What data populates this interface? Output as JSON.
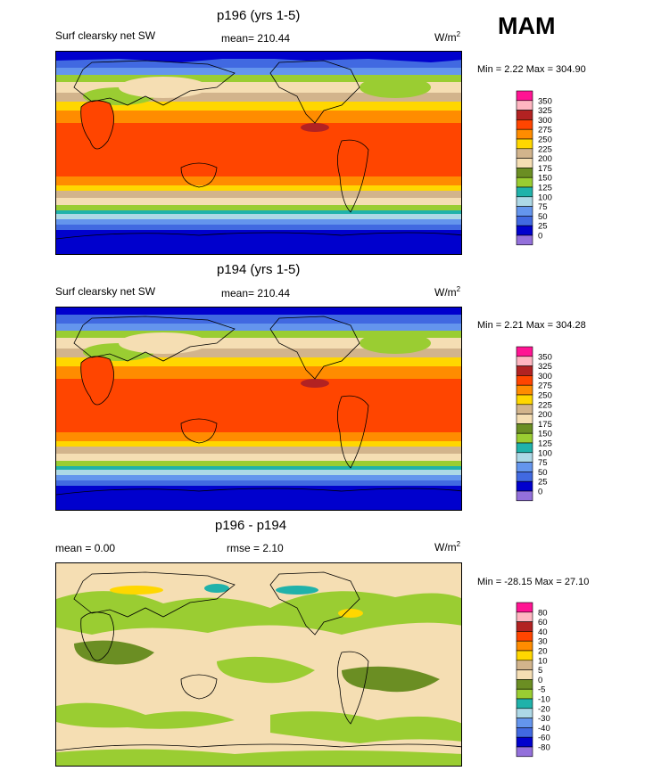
{
  "season": "MAM",
  "panels": [
    {
      "title": "p196 (yrs 1-5)",
      "left_label": "Surf clearsky net SW",
      "center_label": "mean= 210.44",
      "units": "W/m",
      "units_sup": "2",
      "minmax": "Min =   2.22 Max = 304.90",
      "legend_labels": [
        "350",
        "325",
        "300",
        "275",
        "250",
        "225",
        "200",
        "175",
        "150",
        "125",
        "100",
        "75",
        "50",
        "25",
        "0"
      ]
    },
    {
      "title": "p194 (yrs 1-5)",
      "left_label": "Surf clearsky net SW",
      "center_label": "mean= 210.44",
      "units": "W/m",
      "units_sup": "2",
      "minmax": "Min =   2.21 Max = 304.28",
      "legend_labels": [
        "350",
        "325",
        "300",
        "275",
        "250",
        "225",
        "200",
        "175",
        "150",
        "125",
        "100",
        "75",
        "50",
        "25",
        "0"
      ]
    },
    {
      "title": "p196 - p194",
      "left_label": "mean =   0.00",
      "center_label": "rmse =   2.10",
      "units": "W/m",
      "units_sup": "2",
      "minmax": "Min = -28.15 Max =  27.10",
      "legend_labels": [
        "80",
        "60",
        "40",
        "30",
        "20",
        "10",
        "5",
        "0",
        "-5",
        "-10",
        "-20",
        "-30",
        "-40",
        "-60",
        "-80"
      ]
    }
  ],
  "colors": {
    "colorbar": [
      "#ff1493",
      "#ffb6c1",
      "#b22222",
      "#ff4500",
      "#ff8c00",
      "#ffd700",
      "#d2b48c",
      "#f5deb3",
      "#6b8e23",
      "#9acd32",
      "#20b2aa",
      "#add8e6",
      "#6495ed",
      "#4169e1",
      "#0000cd",
      "#9370db"
    ]
  },
  "chart_data": [
    {
      "type": "heatmap",
      "title": "p196 (yrs 1-5)",
      "variable": "Surf clearsky net SW",
      "units": "W/m2",
      "mean": 210.44,
      "min": 2.22,
      "max": 304.9,
      "contour_levels": [
        0,
        25,
        50,
        75,
        100,
        125,
        150,
        175,
        200,
        225,
        250,
        275,
        300,
        325,
        350
      ]
    },
    {
      "type": "heatmap",
      "title": "p194 (yrs 1-5)",
      "variable": "Surf clearsky net SW",
      "units": "W/m2",
      "mean": 210.44,
      "min": 2.21,
      "max": 304.28,
      "contour_levels": [
        0,
        25,
        50,
        75,
        100,
        125,
        150,
        175,
        200,
        225,
        250,
        275,
        300,
        325,
        350
      ]
    },
    {
      "type": "heatmap",
      "title": "p196 - p194",
      "units": "W/m2",
      "mean": 0.0,
      "rmse": 2.1,
      "min": -28.15,
      "max": 27.1,
      "contour_levels": [
        -80,
        -60,
        -40,
        -30,
        -20,
        -10,
        -5,
        0,
        5,
        10,
        20,
        30,
        40,
        60,
        80
      ]
    }
  ]
}
